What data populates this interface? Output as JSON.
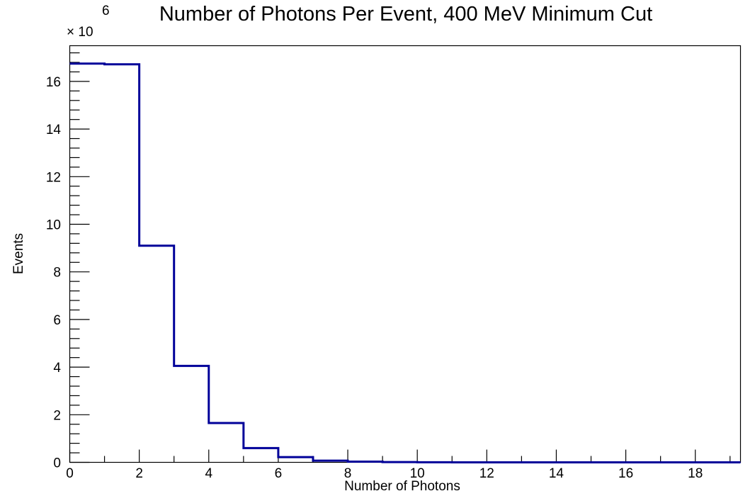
{
  "chart_data": {
    "type": "histogram",
    "title": "Number of Photons Per Event, 400 MeV Minimum Cut",
    "xlabel": "Number of Photons",
    "ylabel": "Events",
    "y_multiplier_label": "× 10",
    "y_multiplier_exponent": "6",
    "y_scale": 1000000,
    "xlim": [
      0,
      19.3
    ],
    "ylim": [
      0,
      17.5
    ],
    "x_ticks": [
      0,
      2,
      4,
      6,
      8,
      10,
      12,
      14,
      16,
      18
    ],
    "y_ticks": [
      0,
      2,
      4,
      6,
      8,
      10,
      12,
      14,
      16
    ],
    "bin_edges": [
      0,
      1,
      2,
      3,
      4,
      5,
      6,
      7,
      8,
      9,
      10,
      11,
      12,
      13,
      14,
      15,
      16,
      17,
      18,
      19,
      19.3
    ],
    "values": [
      16.75,
      16.72,
      9.1,
      4.05,
      1.65,
      0.6,
      0.22,
      0.07,
      0.03,
      0.01,
      0.005,
      0,
      0,
      0,
      0,
      0,
      0,
      0,
      0,
      0
    ],
    "line_color": "#000099",
    "grid": false,
    "legend": "none"
  }
}
